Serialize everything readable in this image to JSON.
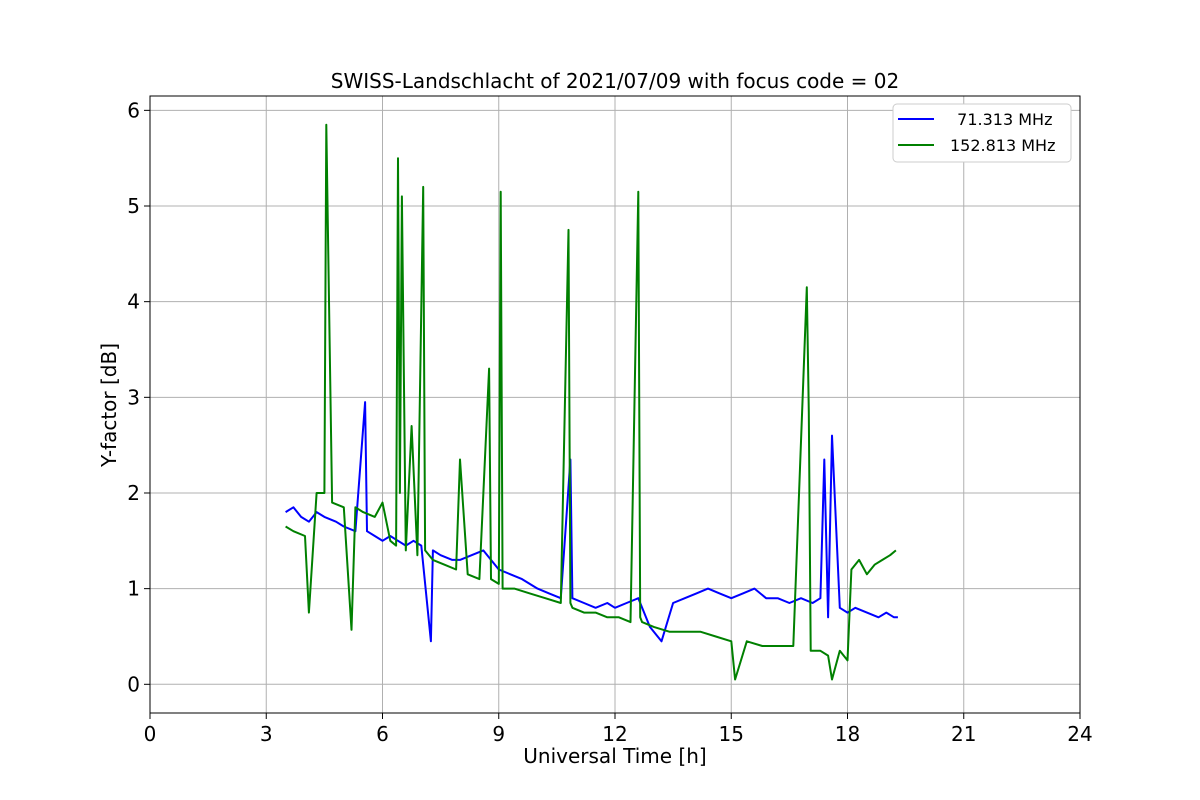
{
  "chart_data": {
    "type": "line",
    "title": "SWISS-Landschlacht of 2021/07/09 with focus code = 02",
    "xlabel": "Universal Time [h]",
    "ylabel": "Y-factor [dB]",
    "xlim": [
      0,
      24
    ],
    "ylim": [
      -0.3,
      6.15
    ],
    "xticks": [
      0,
      3,
      6,
      9,
      12,
      15,
      18,
      21,
      24
    ],
    "yticks": [
      0,
      1,
      2,
      3,
      4,
      5,
      6
    ],
    "grid": true,
    "legend_position": "top-right",
    "series": [
      {
        "name": "  71.313 MHz",
        "color": "#0000ff",
        "x": [
          3.5,
          3.7,
          3.9,
          4.1,
          4.3,
          4.5,
          4.8,
          5.0,
          5.3,
          5.55,
          5.6,
          5.8,
          6.0,
          6.2,
          6.4,
          6.6,
          6.8,
          7.0,
          7.25,
          7.3,
          7.5,
          7.8,
          8.0,
          8.3,
          8.6,
          8.8,
          9.0,
          9.3,
          9.6,
          10.0,
          10.3,
          10.6,
          10.85,
          10.9,
          11.2,
          11.5,
          11.8,
          12.0,
          12.3,
          12.6,
          12.9,
          13.2,
          13.5,
          13.8,
          14.1,
          14.4,
          14.7,
          15.0,
          15.3,
          15.6,
          15.9,
          16.2,
          16.5,
          16.8,
          17.1,
          17.3,
          17.4,
          17.5,
          17.6,
          17.8,
          18.0,
          18.2,
          18.5,
          18.8,
          19.0,
          19.2,
          19.3
        ],
        "values": [
          1.8,
          1.85,
          1.75,
          1.7,
          1.8,
          1.75,
          1.7,
          1.65,
          1.6,
          2.95,
          1.6,
          1.55,
          1.5,
          1.55,
          1.5,
          1.45,
          1.5,
          1.45,
          0.45,
          1.4,
          1.35,
          1.3,
          1.3,
          1.35,
          1.4,
          1.3,
          1.2,
          1.15,
          1.1,
          1.0,
          0.95,
          0.9,
          2.35,
          0.9,
          0.85,
          0.8,
          0.85,
          0.8,
          0.85,
          0.9,
          0.6,
          0.45,
          0.85,
          0.9,
          0.95,
          1.0,
          0.95,
          0.9,
          0.95,
          1.0,
          0.9,
          0.9,
          0.85,
          0.9,
          0.85,
          0.9,
          2.35,
          0.7,
          2.6,
          0.8,
          0.75,
          0.8,
          0.75,
          0.7,
          0.75,
          0.7,
          0.7
        ]
      },
      {
        "name": "152.813 MHz",
        "color": "#008000",
        "x": [
          3.5,
          3.7,
          4.0,
          4.1,
          4.3,
          4.5,
          4.55,
          4.7,
          5.0,
          5.2,
          5.3,
          5.5,
          5.8,
          6.0,
          6.2,
          6.35,
          6.4,
          6.45,
          6.5,
          6.6,
          6.75,
          6.9,
          7.05,
          7.1,
          7.3,
          7.6,
          7.9,
          8.0,
          8.2,
          8.5,
          8.75,
          8.8,
          9.0,
          9.05,
          9.1,
          9.4,
          9.8,
          10.2,
          10.6,
          10.8,
          10.85,
          10.9,
          11.2,
          11.5,
          11.8,
          12.1,
          12.4,
          12.6,
          12.65,
          12.7,
          13.0,
          13.4,
          13.8,
          14.2,
          14.6,
          15.0,
          15.1,
          15.4,
          15.8,
          16.2,
          16.6,
          16.95,
          17.0,
          17.05,
          17.3,
          17.5,
          17.6,
          17.8,
          18.0,
          18.1,
          18.3,
          18.5,
          18.7,
          18.9,
          19.1,
          19.25
        ],
        "values": [
          1.65,
          1.6,
          1.55,
          0.75,
          2.0,
          2.0,
          5.85,
          1.9,
          1.85,
          0.57,
          1.85,
          1.8,
          1.75,
          1.9,
          1.5,
          1.45,
          5.5,
          2.0,
          5.1,
          1.4,
          2.7,
          1.35,
          5.2,
          1.4,
          1.3,
          1.25,
          1.2,
          2.35,
          1.15,
          1.1,
          3.3,
          1.1,
          1.05,
          5.15,
          1.0,
          1.0,
          0.95,
          0.9,
          0.85,
          4.75,
          0.85,
          0.8,
          0.75,
          0.75,
          0.7,
          0.7,
          0.65,
          5.15,
          0.7,
          0.65,
          0.6,
          0.55,
          0.55,
          0.55,
          0.5,
          0.45,
          0.05,
          0.45,
          0.4,
          0.4,
          0.4,
          4.15,
          2.85,
          0.35,
          0.35,
          0.3,
          0.05,
          0.35,
          0.25,
          1.2,
          1.3,
          1.15,
          1.25,
          1.3,
          1.35,
          1.4
        ]
      }
    ]
  }
}
